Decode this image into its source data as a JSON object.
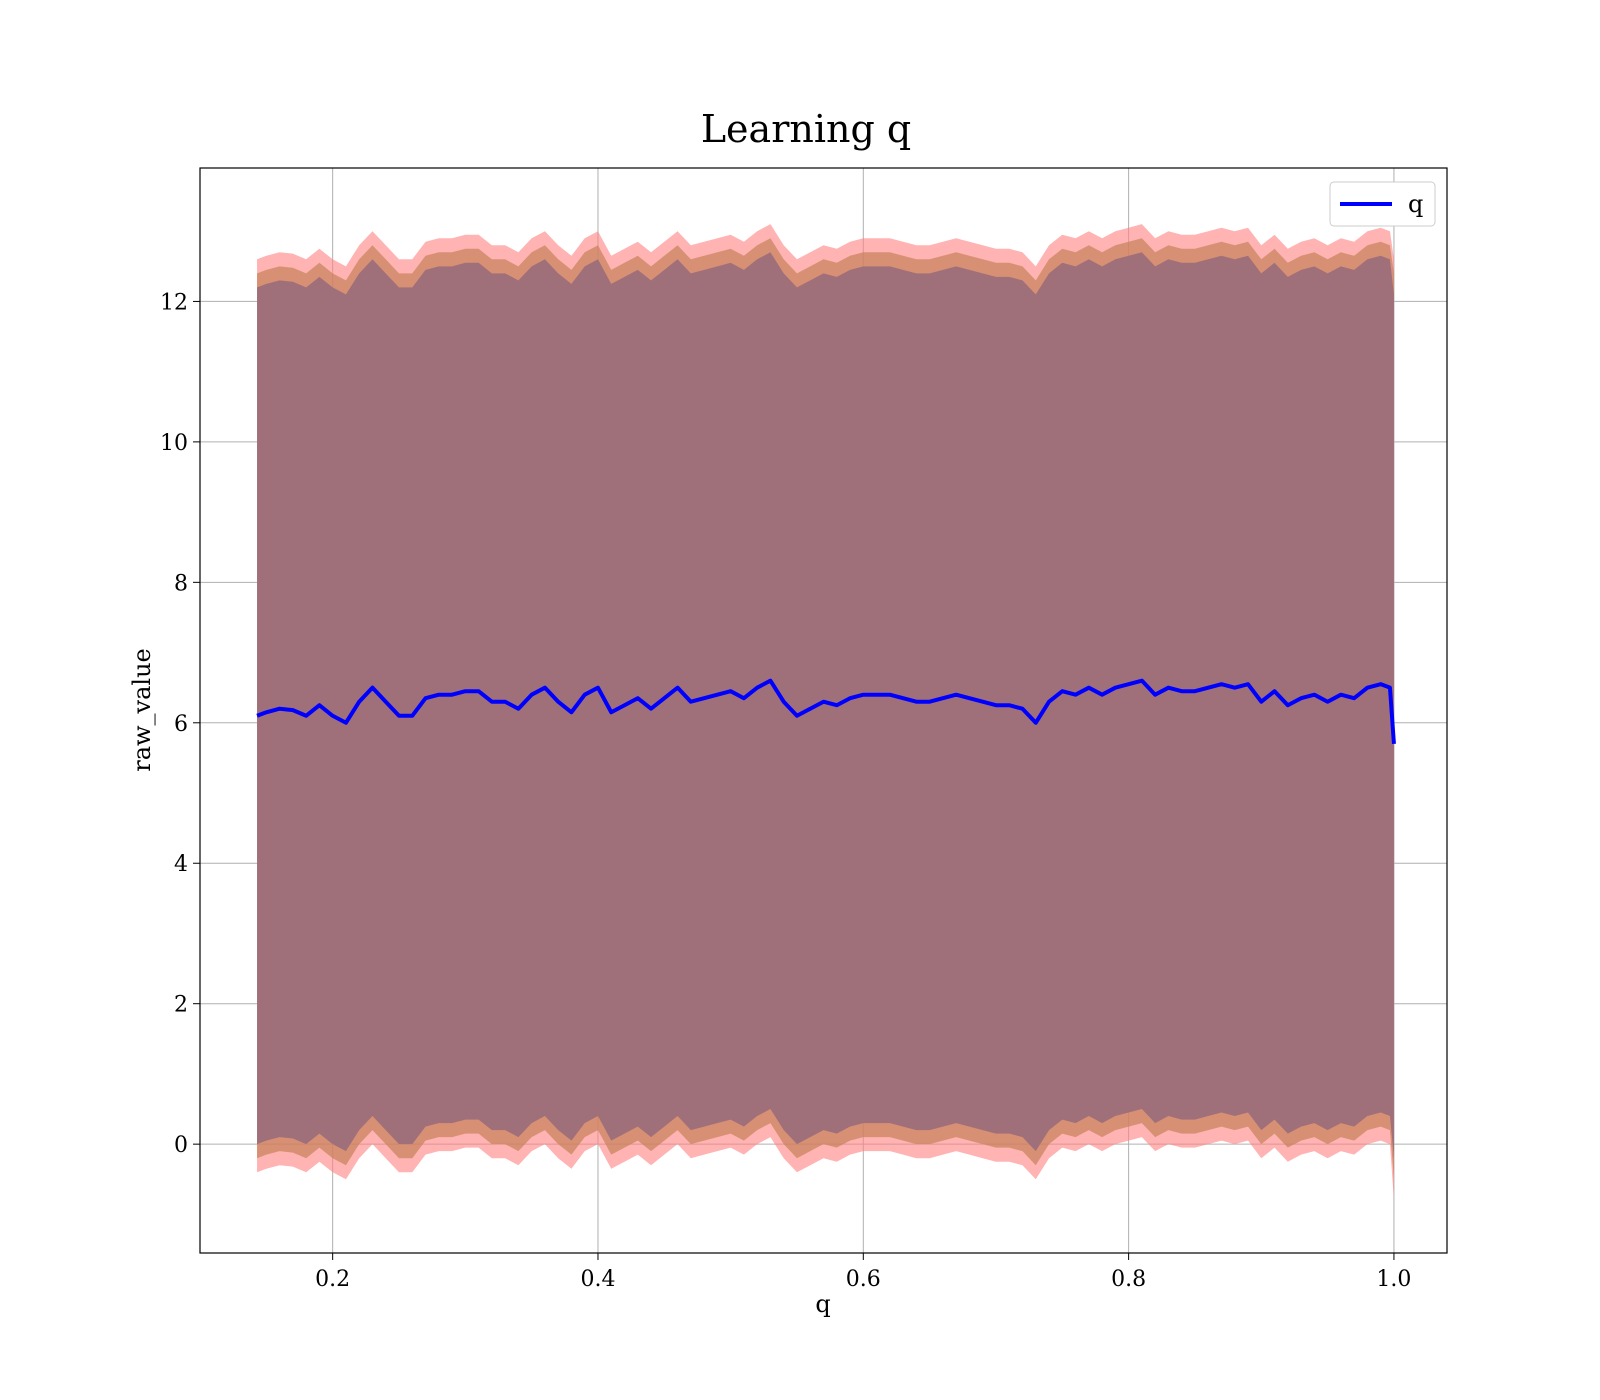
{
  "chart_data": {
    "type": "line",
    "title": "Learning q",
    "xlabel": "q",
    "ylabel": "raw_value",
    "xlim": [
      0.1,
      1.04
    ],
    "ylim": [
      -1.55,
      13.9
    ],
    "x_ticks": [
      0.2,
      0.4,
      0.6,
      0.8,
      1.0
    ],
    "x_tick_labels": [
      "0.2",
      "0.4",
      "0.6",
      "0.8",
      "1.0"
    ],
    "y_ticks": [
      0,
      2,
      4,
      6,
      8,
      10,
      12
    ],
    "y_tick_labels": [
      "0",
      "2",
      "4",
      "6",
      "8",
      "10",
      "12"
    ],
    "grid": true,
    "legend": {
      "position": "top-right",
      "entries": [
        "q"
      ]
    },
    "colors": {
      "line": "#0000ff",
      "outer_band": "#ff8080",
      "middle_band": "#c8825a",
      "inner_band": "#a0707a",
      "grid": "#b0b0b0"
    },
    "series": [
      {
        "name": "q",
        "x": [
          0.143,
          0.15,
          0.16,
          0.17,
          0.18,
          0.19,
          0.2,
          0.21,
          0.22,
          0.23,
          0.24,
          0.25,
          0.26,
          0.27,
          0.28,
          0.29,
          0.3,
          0.31,
          0.32,
          0.33,
          0.34,
          0.35,
          0.36,
          0.37,
          0.38,
          0.39,
          0.4,
          0.41,
          0.42,
          0.43,
          0.44,
          0.45,
          0.46,
          0.47,
          0.48,
          0.49,
          0.5,
          0.51,
          0.52,
          0.53,
          0.54,
          0.55,
          0.56,
          0.57,
          0.58,
          0.59,
          0.6,
          0.61,
          0.62,
          0.63,
          0.64,
          0.65,
          0.66,
          0.67,
          0.68,
          0.69,
          0.7,
          0.71,
          0.72,
          0.73,
          0.74,
          0.75,
          0.76,
          0.77,
          0.78,
          0.79,
          0.8,
          0.81,
          0.82,
          0.83,
          0.84,
          0.85,
          0.86,
          0.87,
          0.88,
          0.89,
          0.9,
          0.91,
          0.92,
          0.93,
          0.94,
          0.95,
          0.96,
          0.97,
          0.98,
          0.99,
          0.997,
          1.0
        ],
        "y": [
          6.1,
          6.15,
          6.2,
          6.18,
          6.1,
          6.25,
          6.1,
          6.0,
          6.3,
          6.5,
          6.3,
          6.1,
          6.1,
          6.35,
          6.4,
          6.4,
          6.45,
          6.45,
          6.3,
          6.3,
          6.2,
          6.4,
          6.5,
          6.3,
          6.15,
          6.4,
          6.5,
          6.15,
          6.25,
          6.35,
          6.2,
          6.35,
          6.5,
          6.3,
          6.35,
          6.4,
          6.45,
          6.35,
          6.5,
          6.6,
          6.3,
          6.1,
          6.2,
          6.3,
          6.25,
          6.35,
          6.4,
          6.4,
          6.4,
          6.35,
          6.3,
          6.3,
          6.35,
          6.4,
          6.35,
          6.3,
          6.25,
          6.25,
          6.2,
          6.0,
          6.3,
          6.45,
          6.4,
          6.5,
          6.4,
          6.5,
          6.55,
          6.6,
          6.4,
          6.5,
          6.45,
          6.45,
          6.5,
          6.55,
          6.5,
          6.55,
          6.3,
          6.45,
          6.25,
          6.35,
          6.4,
          6.3,
          6.4,
          6.35,
          6.5,
          6.55,
          6.5,
          5.7
        ]
      }
    ],
    "bands": [
      {
        "name": "outer",
        "lower": [
          -0.4,
          -0.35,
          -0.3,
          -0.32,
          -0.4,
          -0.25,
          -0.4,
          -0.5,
          -0.2,
          0.0,
          -0.2,
          -0.4,
          -0.4,
          -0.15,
          -0.1,
          -0.1,
          -0.05,
          -0.05,
          -0.2,
          -0.2,
          -0.3,
          -0.1,
          0.0,
          -0.2,
          -0.35,
          -0.1,
          0.0,
          -0.35,
          -0.25,
          -0.15,
          -0.3,
          -0.15,
          0.0,
          -0.2,
          -0.15,
          -0.1,
          -0.05,
          -0.15,
          0.0,
          0.1,
          -0.2,
          -0.4,
          -0.3,
          -0.2,
          -0.25,
          -0.15,
          -0.1,
          -0.1,
          -0.1,
          -0.15,
          -0.2,
          -0.2,
          -0.15,
          -0.1,
          -0.15,
          -0.2,
          -0.25,
          -0.25,
          -0.3,
          -0.5,
          -0.2,
          -0.05,
          -0.1,
          0.0,
          -0.1,
          0.0,
          0.05,
          0.1,
          -0.1,
          0.0,
          -0.05,
          -0.05,
          0.0,
          0.05,
          0.0,
          0.05,
          -0.2,
          -0.05,
          -0.25,
          -0.15,
          -0.1,
          -0.2,
          -0.1,
          -0.15,
          0.0,
          0.05,
          0.0,
          -0.8
        ],
        "upper": [
          12.6,
          12.65,
          12.7,
          12.68,
          12.6,
          12.75,
          12.6,
          12.5,
          12.8,
          13.0,
          12.8,
          12.6,
          12.6,
          12.85,
          12.9,
          12.9,
          12.95,
          12.95,
          12.8,
          12.8,
          12.7,
          12.9,
          13.0,
          12.8,
          12.65,
          12.9,
          13.0,
          12.65,
          12.75,
          12.85,
          12.7,
          12.85,
          13.0,
          12.8,
          12.85,
          12.9,
          12.95,
          12.85,
          13.0,
          13.1,
          12.8,
          12.6,
          12.7,
          12.8,
          12.75,
          12.85,
          12.9,
          12.9,
          12.9,
          12.85,
          12.8,
          12.8,
          12.85,
          12.9,
          12.85,
          12.8,
          12.75,
          12.75,
          12.7,
          12.5,
          12.8,
          12.95,
          12.9,
          13.0,
          12.9,
          13.0,
          13.05,
          13.1,
          12.9,
          13.0,
          12.95,
          12.95,
          13.0,
          13.05,
          13.0,
          13.05,
          12.8,
          12.95,
          12.75,
          12.85,
          12.9,
          12.8,
          12.9,
          12.85,
          13.0,
          13.05,
          13.0,
          12.6
        ]
      },
      {
        "name": "middle",
        "lower": [
          -0.2,
          -0.15,
          -0.1,
          -0.12,
          -0.2,
          -0.05,
          -0.2,
          -0.3,
          0.0,
          0.2,
          0.0,
          -0.2,
          -0.2,
          0.05,
          0.1,
          0.1,
          0.15,
          0.15,
          0.0,
          0.0,
          -0.1,
          0.1,
          0.2,
          0.0,
          -0.15,
          0.1,
          0.2,
          -0.15,
          -0.05,
          0.05,
          -0.1,
          0.05,
          0.2,
          0.0,
          0.05,
          0.1,
          0.15,
          0.05,
          0.2,
          0.3,
          0.0,
          -0.2,
          -0.1,
          0.0,
          -0.05,
          0.05,
          0.1,
          0.1,
          0.1,
          0.05,
          0.0,
          0.0,
          0.05,
          0.1,
          0.05,
          0.0,
          -0.05,
          -0.05,
          -0.1,
          -0.3,
          0.0,
          0.15,
          0.1,
          0.2,
          0.1,
          0.2,
          0.25,
          0.3,
          0.1,
          0.2,
          0.15,
          0.15,
          0.2,
          0.25,
          0.2,
          0.25,
          0.0,
          0.15,
          -0.05,
          0.05,
          0.1,
          0.0,
          0.1,
          0.05,
          0.2,
          0.25,
          0.2,
          -0.5
        ],
        "upper": [
          12.4,
          12.45,
          12.5,
          12.48,
          12.4,
          12.55,
          12.4,
          12.3,
          12.6,
          12.8,
          12.6,
          12.4,
          12.4,
          12.65,
          12.7,
          12.7,
          12.75,
          12.75,
          12.6,
          12.6,
          12.5,
          12.7,
          12.8,
          12.6,
          12.45,
          12.7,
          12.8,
          12.45,
          12.55,
          12.65,
          12.5,
          12.65,
          12.8,
          12.6,
          12.65,
          12.7,
          12.75,
          12.65,
          12.8,
          12.9,
          12.6,
          12.4,
          12.5,
          12.6,
          12.55,
          12.65,
          12.7,
          12.7,
          12.7,
          12.65,
          12.6,
          12.6,
          12.65,
          12.7,
          12.65,
          12.6,
          12.55,
          12.55,
          12.5,
          12.3,
          12.6,
          12.75,
          12.7,
          12.8,
          12.7,
          12.8,
          12.85,
          12.9,
          12.7,
          12.8,
          12.75,
          12.75,
          12.8,
          12.85,
          12.8,
          12.85,
          12.6,
          12.75,
          12.55,
          12.65,
          12.7,
          12.6,
          12.7,
          12.65,
          12.8,
          12.85,
          12.8,
          12.4
        ]
      },
      {
        "name": "inner",
        "lower": [
          0.0,
          0.05,
          0.1,
          0.08,
          0.0,
          0.15,
          0.0,
          -0.1,
          0.2,
          0.4,
          0.2,
          0.0,
          0.0,
          0.25,
          0.3,
          0.3,
          0.35,
          0.35,
          0.2,
          0.2,
          0.1,
          0.3,
          0.4,
          0.2,
          0.05,
          0.3,
          0.4,
          0.05,
          0.15,
          0.25,
          0.1,
          0.25,
          0.4,
          0.2,
          0.25,
          0.3,
          0.35,
          0.25,
          0.4,
          0.5,
          0.2,
          0.0,
          0.1,
          0.2,
          0.15,
          0.25,
          0.3,
          0.3,
          0.3,
          0.25,
          0.2,
          0.2,
          0.25,
          0.3,
          0.25,
          0.2,
          0.15,
          0.15,
          0.1,
          -0.1,
          0.2,
          0.35,
          0.3,
          0.4,
          0.3,
          0.4,
          0.45,
          0.5,
          0.3,
          0.4,
          0.35,
          0.35,
          0.4,
          0.45,
          0.4,
          0.45,
          0.2,
          0.35,
          0.15,
          0.25,
          0.3,
          0.2,
          0.3,
          0.25,
          0.4,
          0.45,
          0.4,
          -0.2
        ],
        "upper": [
          12.2,
          12.25,
          12.3,
          12.28,
          12.2,
          12.35,
          12.2,
          12.1,
          12.4,
          12.6,
          12.4,
          12.2,
          12.2,
          12.45,
          12.5,
          12.5,
          12.55,
          12.55,
          12.4,
          12.4,
          12.3,
          12.5,
          12.6,
          12.4,
          12.25,
          12.5,
          12.6,
          12.25,
          12.35,
          12.45,
          12.3,
          12.45,
          12.6,
          12.4,
          12.45,
          12.5,
          12.55,
          12.45,
          12.6,
          12.7,
          12.4,
          12.2,
          12.3,
          12.4,
          12.35,
          12.45,
          12.5,
          12.5,
          12.5,
          12.45,
          12.4,
          12.4,
          12.45,
          12.5,
          12.45,
          12.4,
          12.35,
          12.35,
          12.3,
          12.1,
          12.4,
          12.55,
          12.5,
          12.6,
          12.5,
          12.6,
          12.65,
          12.7,
          12.5,
          12.6,
          12.55,
          12.55,
          12.6,
          12.65,
          12.6,
          12.65,
          12.4,
          12.55,
          12.35,
          12.45,
          12.5,
          12.4,
          12.5,
          12.45,
          12.6,
          12.65,
          12.6,
          12.1
        ]
      }
    ]
  }
}
